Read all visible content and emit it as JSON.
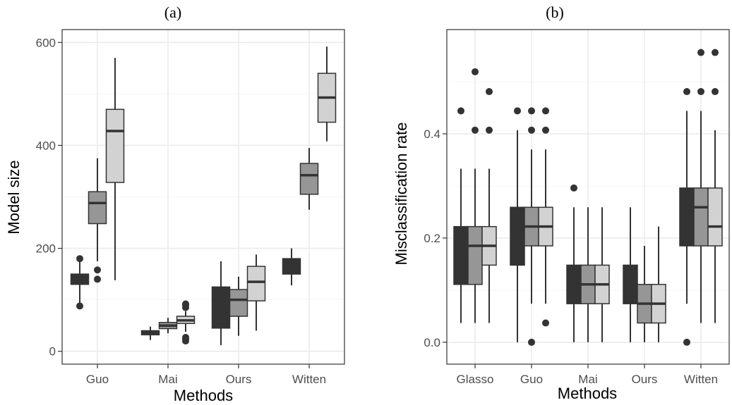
{
  "colors": {
    "dark": "#333333",
    "mid": "#969696",
    "light": "#d2d2d2"
  },
  "chart_data": [
    {
      "type": "box",
      "title": "(a)",
      "xlabel": "Methods",
      "ylabel": "Model size",
      "categories": [
        "Guo",
        "Mai",
        "Ours",
        "Witten"
      ],
      "yticks": [
        "0",
        "200",
        "400",
        "600"
      ],
      "ylim": [
        -25,
        625
      ],
      "grid": true,
      "legend": "none",
      "series": [
        {
          "values": [
            {
              "low": 88,
              "q1": 130,
              "median": 140,
              "q3": 150,
              "high": 180,
              "outliers": [
                88,
                180
              ]
            },
            {
              "low": 22,
              "q1": 32,
              "median": 36,
              "q3": 40,
              "high": 48,
              "outliers": []
            },
            {
              "low": 12,
              "q1": 45,
              "median": 95,
              "q3": 125,
              "high": 175,
              "outliers": []
            },
            {
              "low": 128,
              "q1": 150,
              "median": 170,
              "q3": 180,
              "high": 200,
              "outliers": []
            }
          ]
        },
        {
          "values": [
            {
              "low": 175,
              "q1": 248,
              "median": 288,
              "q3": 310,
              "high": 375,
              "outliers": [
                158,
                140
              ]
            },
            {
              "low": 35,
              "q1": 44,
              "median": 50,
              "q3": 56,
              "high": 65,
              "outliers": []
            },
            {
              "low": 30,
              "q1": 68,
              "median": 100,
              "q3": 120,
              "high": 145,
              "outliers": []
            },
            {
              "low": 275,
              "q1": 305,
              "median": 342,
              "q3": 365,
              "high": 395,
              "outliers": []
            }
          ]
        },
        {
          "values": [
            {
              "low": 138,
              "q1": 328,
              "median": 428,
              "q3": 470,
              "high": 570,
              "outliers": []
            },
            {
              "low": 38,
              "q1": 54,
              "median": 60,
              "q3": 68,
              "high": 78,
              "outliers": [
                90,
                92,
                85,
                20,
                24,
                27
              ]
            },
            {
              "low": 40,
              "q1": 98,
              "median": 135,
              "q3": 165,
              "high": 188,
              "outliers": []
            },
            {
              "low": 408,
              "q1": 445,
              "median": 493,
              "q3": 540,
              "high": 592,
              "outliers": []
            }
          ]
        }
      ]
    },
    {
      "type": "box",
      "title": "(b)",
      "xlabel": "Methods",
      "ylabel": "Misclassification rate",
      "categories": [
        "Glasso",
        "Guo",
        "Mai",
        "Ours",
        "Witten"
      ],
      "yticks": [
        "0.0",
        "0.2",
        "0.4"
      ],
      "ylim": [
        -0.042,
        0.6
      ],
      "grid": true,
      "legend": "none",
      "series": [
        {
          "values": [
            {
              "low": 0.037,
              "q1": 0.111,
              "median": 0.185,
              "q3": 0.222,
              "high": 0.333,
              "outliers": [
                0.444
              ]
            },
            {
              "low": 0.0,
              "q1": 0.148,
              "median": 0.222,
              "q3": 0.259,
              "high": 0.407,
              "outliers": [
                0.444
              ]
            },
            {
              "low": 0.0,
              "q1": 0.074,
              "median": 0.111,
              "q3": 0.148,
              "high": 0.259,
              "outliers": [
                0.296
              ]
            },
            {
              "low": 0.0,
              "q1": 0.074,
              "median": 0.111,
              "q3": 0.148,
              "high": 0.259,
              "outliers": []
            },
            {
              "low": 0.074,
              "q1": 0.185,
              "median": 0.259,
              "q3": 0.296,
              "high": 0.444,
              "outliers": [
                0.481,
                0.0
              ]
            }
          ]
        },
        {
          "values": [
            {
              "low": 0.037,
              "q1": 0.111,
              "median": 0.185,
              "q3": 0.222,
              "high": 0.333,
              "outliers": [
                0.407,
                0.519
              ]
            },
            {
              "low": 0.074,
              "q1": 0.185,
              "median": 0.222,
              "q3": 0.259,
              "high": 0.37,
              "outliers": [
                0.407,
                0.444,
                0.0
              ]
            },
            {
              "low": 0.0,
              "q1": 0.074,
              "median": 0.111,
              "q3": 0.148,
              "high": 0.259,
              "outliers": []
            },
            {
              "low": 0.0,
              "q1": 0.037,
              "median": 0.074,
              "q3": 0.111,
              "high": 0.185,
              "outliers": []
            },
            {
              "low": 0.037,
              "q1": 0.185,
              "median": 0.259,
              "q3": 0.296,
              "high": 0.444,
              "outliers": [
                0.481,
                0.556
              ]
            }
          ]
        },
        {
          "values": [
            {
              "low": 0.037,
              "q1": 0.148,
              "median": 0.185,
              "q3": 0.222,
              "high": 0.333,
              "outliers": [
                0.407,
                0.481
              ]
            },
            {
              "low": 0.074,
              "q1": 0.185,
              "median": 0.222,
              "q3": 0.259,
              "high": 0.37,
              "outliers": [
                0.407,
                0.444,
                0.037
              ]
            },
            {
              "low": 0.0,
              "q1": 0.074,
              "median": 0.111,
              "q3": 0.148,
              "high": 0.259,
              "outliers": []
            },
            {
              "low": 0.0,
              "q1": 0.037,
              "median": 0.074,
              "q3": 0.111,
              "high": 0.222,
              "outliers": []
            },
            {
              "low": 0.037,
              "q1": 0.185,
              "median": 0.222,
              "q3": 0.296,
              "high": 0.407,
              "outliers": [
                0.481,
                0.556
              ]
            }
          ]
        }
      ]
    }
  ]
}
